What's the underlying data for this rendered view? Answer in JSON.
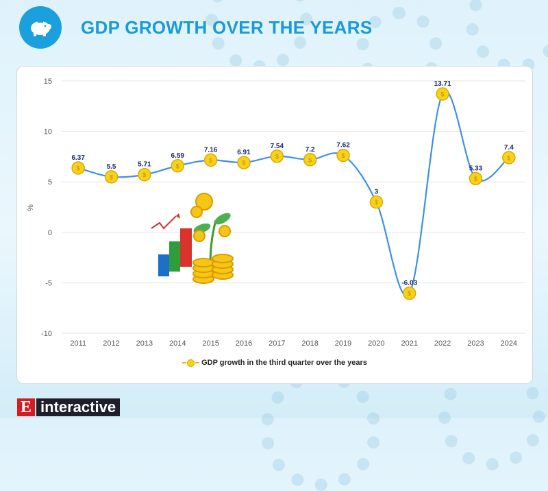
{
  "header": {
    "title": "GDP GROWTH OVER THE YEARS",
    "icon": "piggy-bank-gear-icon"
  },
  "brand": {
    "letter": "E",
    "word": "interactive"
  },
  "colors": {
    "line": "#3d8fe8",
    "marker": "#f7d21a",
    "title": "#1a9ad8",
    "brand_red": "#d41c24"
  },
  "chart_data": {
    "type": "line",
    "categories": [
      "2011",
      "2012",
      "2013",
      "2014",
      "2015",
      "2016",
      "2017",
      "2018",
      "2019",
      "2020",
      "2021",
      "2022",
      "2023",
      "2024"
    ],
    "series": [
      {
        "name": "GDP growth in the third quarter over the years",
        "values": [
          6.37,
          5.5,
          5.71,
          6.59,
          7.16,
          6.91,
          7.54,
          7.2,
          7.62,
          3,
          -6.03,
          13.71,
          5.33,
          7.4
        ],
        "labels": [
          "6.37",
          "5.5",
          "5.71",
          "6.59",
          "7.16",
          "6.91",
          "7.54",
          "7.2",
          "7.62",
          "3",
          "-6.03",
          "13.71",
          "5.33",
          "7.4"
        ]
      }
    ],
    "ylabel": "%",
    "xlabel": "",
    "ylim": [
      -10,
      15
    ],
    "yticks": [
      "15",
      "10",
      "5",
      "0",
      "-5",
      "-10"
    ],
    "yticks_values": [
      15,
      10,
      5,
      0,
      -5,
      -10
    ],
    "grid": true,
    "smooth": true,
    "legend": "bottom"
  }
}
